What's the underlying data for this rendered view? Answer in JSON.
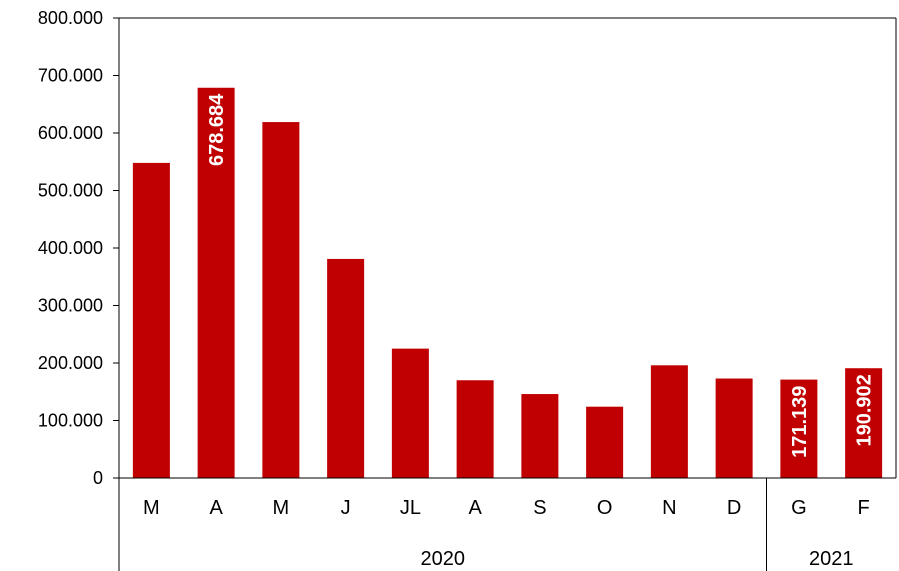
{
  "chart_data": {
    "type": "bar",
    "categories": [
      "M",
      "A",
      "M",
      "J",
      "JL",
      "A",
      "S",
      "O",
      "N",
      "D",
      "G",
      "F"
    ],
    "values": [
      548000,
      678684,
      619000,
      381000,
      225000,
      170000,
      146000,
      124000,
      196000,
      173000,
      171139,
      190902
    ],
    "data_labels": [
      {
        "index": 1,
        "text": "678.684"
      },
      {
        "index": 10,
        "text": "171.139"
      },
      {
        "index": 11,
        "text": "190.902"
      }
    ],
    "groups": [
      {
        "label": "2020",
        "start": 0,
        "end": 9
      },
      {
        "label": "2021",
        "start": 10,
        "end": 11
      }
    ],
    "ylim": [
      0,
      800000
    ],
    "yticks": [
      {
        "value": 0,
        "label": "0"
      },
      {
        "value": 100000,
        "label": "100.000"
      },
      {
        "value": 200000,
        "label": "200.000"
      },
      {
        "value": 300000,
        "label": "300.000"
      },
      {
        "value": 400000,
        "label": "400.000"
      },
      {
        "value": 500000,
        "label": "500.000"
      },
      {
        "value": 600000,
        "label": "600.000"
      },
      {
        "value": 700000,
        "label": "700.000"
      },
      {
        "value": 800000,
        "label": "800.000"
      }
    ],
    "bar_color": "#c00000",
    "grid": false,
    "legend": "none"
  }
}
